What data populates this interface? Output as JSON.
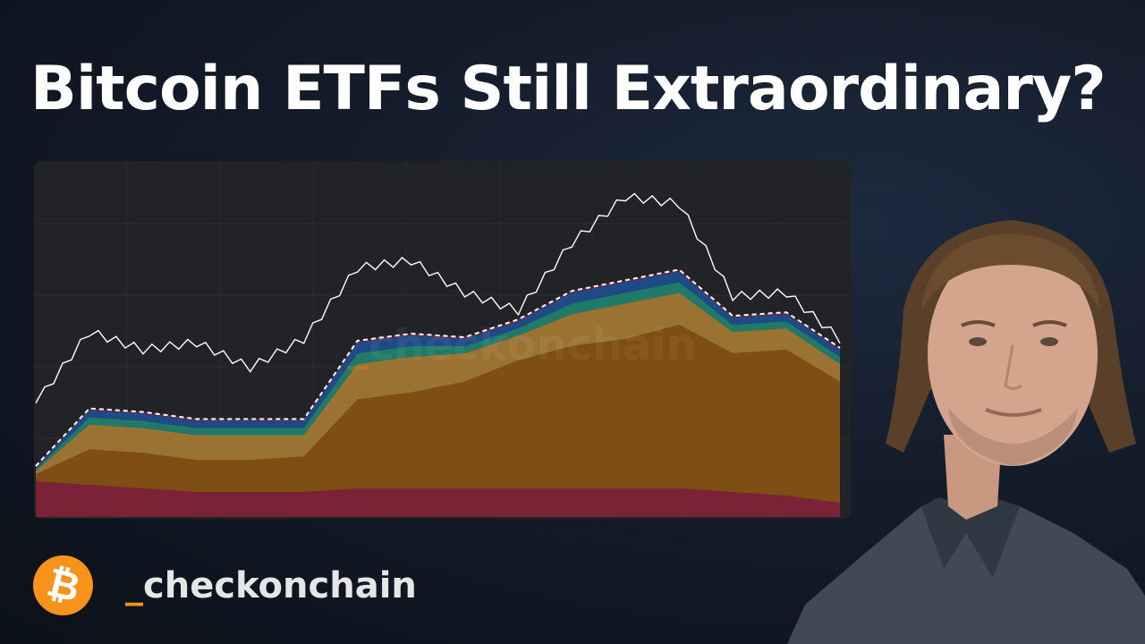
{
  "title": "Bitcoin ETFs Still Extraordinary?",
  "brand": {
    "logo_glyph": "₿",
    "logo_color": "#f7931a",
    "handle_prefix": "_",
    "handle_name": "checkonchain"
  },
  "watermark": {
    "prefix": "_",
    "text": "checkonchain"
  },
  "colors": {
    "background": "#111824",
    "chart_bg": "#222326",
    "accent": "#f7931a",
    "title_text": "#ffffff"
  },
  "chart_data": {
    "type": "area",
    "title": "",
    "xlabel": "",
    "ylabel": "",
    "grid": true,
    "legend": "none",
    "ylim": [
      0,
      100
    ],
    "note": "No axes, ticks or legend visible; values are normalized estimates (0 = chart bottom, 100 = chart top) sampled at 16 evenly spaced points left to right.",
    "x": [
      0,
      1,
      2,
      3,
      4,
      5,
      6,
      7,
      8,
      9,
      10,
      11,
      12,
      13,
      14,
      15
    ],
    "line_series": {
      "name": "white price line",
      "color": "#ffffff",
      "values": [
        32,
        52,
        47,
        49,
        42,
        50,
        70,
        72,
        63,
        58,
        77,
        90,
        88,
        62,
        63,
        50
      ]
    },
    "series": [
      {
        "name": "crimson base layer",
        "color": "#7b2238",
        "values": [
          10,
          9,
          8,
          7,
          7,
          7,
          8,
          8,
          8,
          8,
          8,
          8,
          8,
          7,
          6,
          4
        ]
      },
      {
        "name": "dark orange layer",
        "color": "#7e4e14",
        "values": [
          2,
          10,
          10,
          9,
          9,
          10,
          25,
          27,
          30,
          36,
          40,
          42,
          46,
          39,
          41,
          34
        ]
      },
      {
        "name": "light gold layer",
        "color": "#9a7332",
        "values": [
          1,
          7,
          7,
          7,
          7,
          6,
          10,
          10,
          8,
          7,
          9,
          10,
          9,
          6,
          6,
          5
        ]
      },
      {
        "name": "teal layer",
        "color": "#1f7a6a",
        "values": [
          0.5,
          2,
          2,
          2,
          2,
          2,
          3,
          3,
          2,
          2,
          3,
          3,
          3,
          2,
          2,
          2
        ]
      },
      {
        "name": "navy layer",
        "color": "#1e4a85",
        "values": [
          0.5,
          2,
          2,
          2,
          2,
          2,
          3,
          3,
          2,
          2,
          3,
          3,
          3,
          2,
          2,
          2
        ]
      },
      {
        "name": "maroon top sliver",
        "color": "#6e2440",
        "values": [
          0.3,
          0.5,
          0.5,
          0.5,
          0.5,
          0.5,
          0.5,
          0.5,
          0.5,
          0.5,
          0.5,
          0.5,
          0.5,
          0.5,
          0.5,
          0.5
        ]
      }
    ],
    "top_outline": {
      "name": "white dashed total outline",
      "color": "#ffffff",
      "style": "dashed"
    }
  }
}
